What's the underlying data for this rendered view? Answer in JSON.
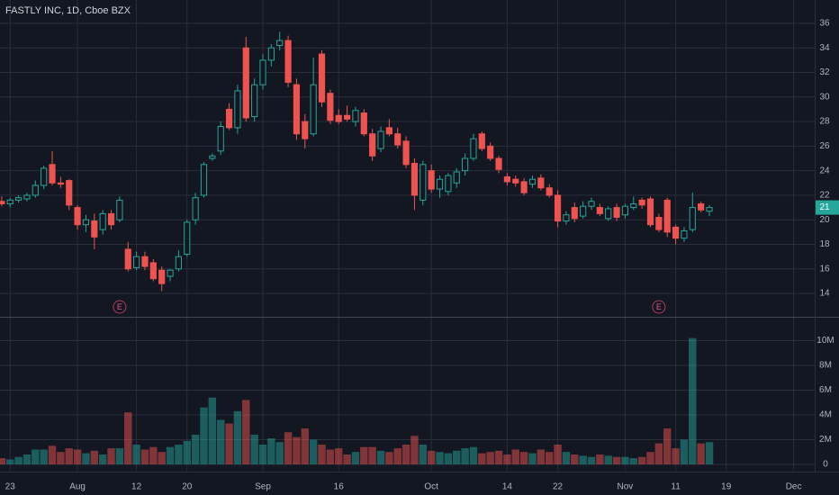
{
  "chart_data": {
    "type": "candlestick",
    "title": "FASTLY INC, 1D, Cboe BZX",
    "up_color": "#26a69a",
    "down_color": "#ef5350",
    "grid": true,
    "xlim": [
      -0.2,
      96.5
    ],
    "xticks": [
      {
        "value": 1,
        "label": "23"
      },
      {
        "value": 9,
        "label": "Aug"
      },
      {
        "value": 16,
        "label": "12"
      },
      {
        "value": 22,
        "label": "20"
      },
      {
        "value": 31,
        "label": "Sep"
      },
      {
        "value": 40,
        "label": "16"
      },
      {
        "value": 51,
        "label": "Oct"
      },
      {
        "value": 60,
        "label": "14"
      },
      {
        "value": 66,
        "label": "22"
      },
      {
        "value": 74,
        "label": "Nov"
      },
      {
        "value": 80,
        "label": "11"
      },
      {
        "value": 86,
        "label": "19"
      },
      {
        "value": 94,
        "label": "Dec"
      }
    ],
    "ylim": [
      12.1,
      37.9
    ],
    "yticks": [
      14,
      16,
      18,
      20,
      22,
      24,
      26,
      28,
      30,
      32,
      34,
      36
    ],
    "last_price": 21,
    "annotations": [
      {
        "label": "E",
        "x": 14
      },
      {
        "label": "E",
        "x": 78
      }
    ],
    "ohlc": [
      [
        21.5,
        21.9,
        21.1,
        21.3
      ],
      [
        21.3,
        21.8,
        21.0,
        21.6
      ],
      [
        21.6,
        22.0,
        21.4,
        21.8
      ],
      [
        21.7,
        22.2,
        21.5,
        22.0
      ],
      [
        22.0,
        23.2,
        21.8,
        22.8
      ],
      [
        22.8,
        24.4,
        22.5,
        24.2
      ],
      [
        24.5,
        25.6,
        22.8,
        23.0
      ],
      [
        23.0,
        23.5,
        22.6,
        22.9
      ],
      [
        23.2,
        23.3,
        20.8,
        21.2
      ],
      [
        21.0,
        21.2,
        19.2,
        19.6
      ],
      [
        19.6,
        20.4,
        19.0,
        20.0
      ],
      [
        19.9,
        20.5,
        17.6,
        18.6
      ],
      [
        19.2,
        20.8,
        18.8,
        20.5
      ],
      [
        20.5,
        20.8,
        19.2,
        19.6
      ],
      [
        20.0,
        21.9,
        19.8,
        21.6
      ],
      [
        17.6,
        18.2,
        15.8,
        16.0
      ],
      [
        16.1,
        17.4,
        15.9,
        17.0
      ],
      [
        17.0,
        17.4,
        15.9,
        16.2
      ],
      [
        16.5,
        16.8,
        15.0,
        15.2
      ],
      [
        15.9,
        16.2,
        14.2,
        14.8
      ],
      [
        15.4,
        16.0,
        15.0,
        15.9
      ],
      [
        16.0,
        17.5,
        15.8,
        17.0
      ],
      [
        17.2,
        20.0,
        17.0,
        19.8
      ],
      [
        20.0,
        22.2,
        19.6,
        21.8
      ],
      [
        22.0,
        24.7,
        21.8,
        24.5
      ],
      [
        25.0,
        25.4,
        24.8,
        25.2
      ],
      [
        25.6,
        28.0,
        25.3,
        27.6
      ],
      [
        29.0,
        29.5,
        27.3,
        27.5
      ],
      [
        27.5,
        31.0,
        27.0,
        30.5
      ],
      [
        34.0,
        34.9,
        28.0,
        28.3
      ],
      [
        28.4,
        31.5,
        28.0,
        31.0
      ],
      [
        31.0,
        33.5,
        30.6,
        33.0
      ],
      [
        33.0,
        34.3,
        32.5,
        34.0
      ],
      [
        34.2,
        35.3,
        33.8,
        34.6
      ],
      [
        34.6,
        35.0,
        30.8,
        31.2
      ],
      [
        31.0,
        31.5,
        26.5,
        27.0
      ],
      [
        28.0,
        28.6,
        25.8,
        26.6
      ],
      [
        27.0,
        33.2,
        26.8,
        31.0
      ],
      [
        33.5,
        33.8,
        29.2,
        29.6
      ],
      [
        30.3,
        30.6,
        27.8,
        28.1
      ],
      [
        28.5,
        29.0,
        27.8,
        28.0
      ],
      [
        28.5,
        29.3,
        28.0,
        28.2
      ],
      [
        28.0,
        29.2,
        27.6,
        28.9
      ],
      [
        28.7,
        29.0,
        26.8,
        27.0
      ],
      [
        27.0,
        27.4,
        24.8,
        25.2
      ],
      [
        25.8,
        27.6,
        25.5,
        27.2
      ],
      [
        27.5,
        28.2,
        26.8,
        27.0
      ],
      [
        27.0,
        27.5,
        25.8,
        26.1
      ],
      [
        26.4,
        26.8,
        24.2,
        24.5
      ],
      [
        24.6,
        25.0,
        20.8,
        22.0
      ],
      [
        21.6,
        24.8,
        21.2,
        24.5
      ],
      [
        24.0,
        24.5,
        22.2,
        22.5
      ],
      [
        22.5,
        23.6,
        21.8,
        23.3
      ],
      [
        22.3,
        23.8,
        22.0,
        23.6
      ],
      [
        23.0,
        24.2,
        22.6,
        23.9
      ],
      [
        24.0,
        25.4,
        23.6,
        25.0
      ],
      [
        25.0,
        27.0,
        24.8,
        26.6
      ],
      [
        27.0,
        27.2,
        25.6,
        25.8
      ],
      [
        26.0,
        26.3,
        24.8,
        25.0
      ],
      [
        25.0,
        25.2,
        23.8,
        24.1
      ],
      [
        23.5,
        23.8,
        22.8,
        23.1
      ],
      [
        23.3,
        23.6,
        22.7,
        23.0
      ],
      [
        23.1,
        23.4,
        22.0,
        22.2
      ],
      [
        22.9,
        23.6,
        22.6,
        23.3
      ],
      [
        23.4,
        23.7,
        22.4,
        22.6
      ],
      [
        22.6,
        22.9,
        21.8,
        22.0
      ],
      [
        22.0,
        22.4,
        19.4,
        19.9
      ],
      [
        19.9,
        20.7,
        19.6,
        20.4
      ],
      [
        21.0,
        21.4,
        19.8,
        20.1
      ],
      [
        20.3,
        21.5,
        20.1,
        21.1
      ],
      [
        21.1,
        21.8,
        20.8,
        21.5
      ],
      [
        21.0,
        21.3,
        20.3,
        20.5
      ],
      [
        20.1,
        21.1,
        19.9,
        20.9
      ],
      [
        21.0,
        21.3,
        19.9,
        20.2
      ],
      [
        20.4,
        21.3,
        20.1,
        21.1
      ],
      [
        21.0,
        21.9,
        20.8,
        21.3
      ],
      [
        21.6,
        21.8,
        20.9,
        21.2
      ],
      [
        21.7,
        21.9,
        19.4,
        19.6
      ],
      [
        20.2,
        20.5,
        19.0,
        19.2
      ],
      [
        21.6,
        21.8,
        18.6,
        19.0
      ],
      [
        19.4,
        19.6,
        18.0,
        18.5
      ],
      [
        18.5,
        19.4,
        18.2,
        19.1
      ],
      [
        19.2,
        22.2,
        19.0,
        21.0
      ],
      [
        21.3,
        21.5,
        20.6,
        20.8
      ],
      [
        20.7,
        21.2,
        20.3,
        21.0
      ]
    ],
    "volume": [
      500000,
      400000,
      600000,
      800000,
      1200000,
      1200000,
      1500000,
      1000000,
      1300000,
      1200000,
      900000,
      1100000,
      800000,
      1300000,
      1300000,
      4200000,
      1600000,
      1200000,
      1400000,
      1000000,
      1400000,
      1600000,
      1900000,
      2400000,
      4600000,
      5400000,
      3600000,
      3300000,
      4300000,
      5200000,
      2400000,
      1600000,
      2100000,
      1800000,
      2600000,
      2200000,
      2900000,
      2000000,
      1600000,
      1200000,
      1300000,
      800000,
      1000000,
      1400000,
      1400000,
      1100000,
      1000000,
      1300000,
      1600000,
      2300000,
      1600000,
      1100000,
      1000000,
      900000,
      1100000,
      1300000,
      1400000,
      900000,
      1000000,
      1100000,
      800000,
      1200000,
      1000000,
      900000,
      1200000,
      1000000,
      1600000,
      1000000,
      800000,
      700000,
      600000,
      800000,
      700000,
      600000,
      600000,
      500000,
      600000,
      1000000,
      1700000,
      2900000,
      1300000,
      2000000,
      10200000,
      1700000,
      1800000
    ],
    "volume_ylim": [
      -510000,
      11850000
    ],
    "volume_ticks": [
      0,
      {
        "value": 2000000,
        "label": "2M"
      },
      {
        "value": 4000000,
        "label": "4M"
      },
      {
        "value": 6000000,
        "label": "6M"
      },
      {
        "value": 8000000,
        "label": "8M"
      },
      {
        "value": 10000000,
        "label": "10M"
      }
    ]
  }
}
